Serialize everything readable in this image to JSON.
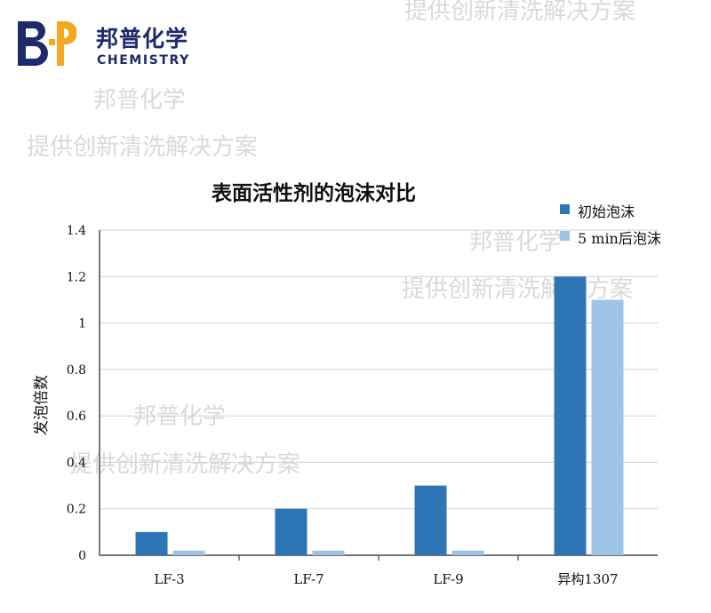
{
  "logo": {
    "mark": "B·P",
    "name_cn": "邦普化学",
    "name_en": "CHEMISTRY"
  },
  "watermarks": {
    "brand": "邦普化学",
    "slogan": "提供创新清洗解决方案"
  },
  "colors": {
    "brand": "#1f2a6b",
    "logo_accent": "#f5a623",
    "initial_foam": "#2e75b6",
    "foam_5min": "#9dc3e6",
    "grid": "#d0d0d0"
  },
  "chart_data": {
    "type": "bar",
    "title": "表面活性剂的泡沫对比",
    "ylabel": "发泡倍数",
    "xlabel": "",
    "categories": [
      "LF-3",
      "LF-7",
      "LF-9",
      "异构1307"
    ],
    "series": [
      {
        "name": "初始泡沫",
        "color": "#2e75b6",
        "values": [
          0.1,
          0.2,
          0.3,
          1.2
        ]
      },
      {
        "name": "5 min后泡沫",
        "color": "#9dc3e6",
        "values": [
          0.02,
          0.02,
          0.02,
          1.1
        ]
      }
    ],
    "ylim": [
      0,
      1.4
    ],
    "yticks": [
      "0",
      "0.2",
      "0.4",
      "0.6",
      "0.8",
      "1",
      "1.2",
      "1.4"
    ],
    "grid": true,
    "legend": "top-right"
  }
}
